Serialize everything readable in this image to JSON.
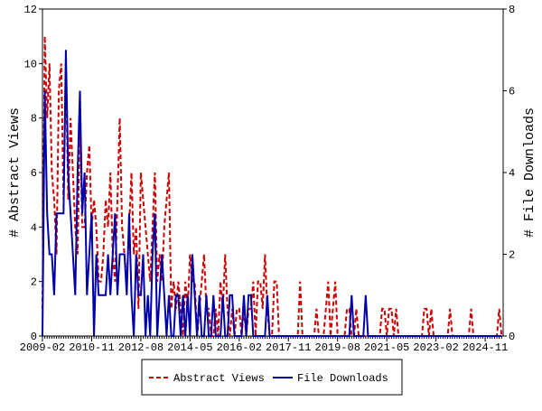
{
  "chart_data": {
    "type": "line",
    "y_label": "# Abstract Views",
    "y2_label": "# File Downloads",
    "x": [
      "2009-02",
      "2009-03",
      "2009-04",
      "2009-05",
      "2009-06",
      "2009-07",
      "2009-08",
      "2009-09",
      "2009-10",
      "2009-11",
      "2009-12",
      "2010-01",
      "2010-02",
      "2010-03",
      "2010-04",
      "2010-05",
      "2010-06",
      "2010-07",
      "2010-08",
      "2010-09",
      "2010-10",
      "2010-11",
      "2010-12",
      "2011-01",
      "2011-02",
      "2011-03",
      "2011-04",
      "2011-05",
      "2011-06",
      "2011-07",
      "2011-08",
      "2011-09",
      "2011-10",
      "2011-11",
      "2011-12",
      "2012-01",
      "2012-02",
      "2012-03",
      "2012-04",
      "2012-05",
      "2012-06",
      "2012-07",
      "2012-08",
      "2012-09",
      "2012-10",
      "2012-11",
      "2012-12",
      "2013-01",
      "2013-02",
      "2013-03",
      "2013-04",
      "2013-05",
      "2013-06",
      "2013-07",
      "2013-08",
      "2013-09",
      "2013-10",
      "2013-11",
      "2013-12",
      "2014-01",
      "2014-02",
      "2014-03",
      "2014-04",
      "2014-05",
      "2014-06",
      "2014-07",
      "2014-08",
      "2014-09",
      "2014-10",
      "2014-11",
      "2014-12",
      "2015-01",
      "2015-02",
      "2015-03",
      "2015-04",
      "2015-05",
      "2015-06",
      "2015-07",
      "2015-08",
      "2015-09",
      "2015-10",
      "2015-11",
      "2015-12",
      "2016-01",
      "2016-02",
      "2016-03",
      "2016-04",
      "2016-05",
      "2016-06",
      "2016-07",
      "2016-08",
      "2016-09",
      "2016-10",
      "2016-11",
      "2016-12",
      "2017-01",
      "2017-02",
      "2017-03",
      "2017-04",
      "2017-05",
      "2017-06",
      "2017-07",
      "2017-08",
      "2017-09",
      "2017-10",
      "2017-11",
      "2017-12",
      "2018-01",
      "2018-02",
      "2018-03",
      "2018-04",
      "2018-05",
      "2018-06",
      "2018-07",
      "2018-08",
      "2018-09",
      "2018-10",
      "2018-11",
      "2018-12",
      "2019-01",
      "2019-02",
      "2019-03",
      "2019-04",
      "2019-05",
      "2019-06",
      "2019-07",
      "2019-08",
      "2019-09",
      "2019-10",
      "2019-11",
      "2019-12",
      "2020-01",
      "2020-02",
      "2020-03",
      "2020-04",
      "2020-05",
      "2020-06",
      "2020-07",
      "2020-08",
      "2020-09",
      "2020-10",
      "2020-11",
      "2020-12",
      "2021-01",
      "2021-02",
      "2021-03",
      "2021-04",
      "2021-05",
      "2021-06",
      "2021-07",
      "2021-08",
      "2021-09",
      "2021-10",
      "2021-11",
      "2021-12",
      "2022-01",
      "2022-02",
      "2022-03",
      "2022-04",
      "2022-05",
      "2022-06",
      "2022-07",
      "2022-08",
      "2022-09",
      "2022-10",
      "2022-11",
      "2022-12",
      "2023-01",
      "2023-02",
      "2023-03",
      "2023-04",
      "2023-05",
      "2023-06",
      "2023-07",
      "2023-08",
      "2023-09",
      "2023-10",
      "2023-11",
      "2023-12",
      "2024-01",
      "2024-02",
      "2024-03",
      "2024-04",
      "2024-05",
      "2024-06",
      "2024-07",
      "2024-08",
      "2024-09",
      "2024-10",
      "2024-11",
      "2024-12",
      "2025-01",
      "2025-02",
      "2025-03",
      "2025-04",
      "2025-05",
      "2025-06"
    ],
    "xticks": [
      "2009-02",
      "2010-11",
      "2012-08",
      "2014-05",
      "2016-02",
      "2017-11",
      "2019-08",
      "2021-05",
      "2023-02",
      "2024-11"
    ],
    "ylim": [
      0,
      12
    ],
    "yticks": [
      0,
      2,
      4,
      6,
      8,
      10,
      12
    ],
    "y2lim": [
      0,
      8
    ],
    "y2ticks": [
      0,
      2,
      4,
      6,
      8
    ],
    "series": [
      {
        "name": "Abstract Views",
        "color": "#cc0000",
        "dash": true,
        "values": [
          1,
          11,
          8,
          10,
          6,
          5,
          3,
          9,
          10,
          5,
          10,
          5,
          8,
          6,
          4,
          3,
          8,
          4,
          4,
          6,
          7,
          4,
          5,
          4,
          2,
          2,
          3,
          5,
          4,
          6,
          3,
          2,
          5,
          8,
          4,
          3,
          2,
          4,
          6,
          3,
          4,
          1,
          6,
          5,
          4,
          3,
          2,
          4,
          6,
          2,
          3,
          2,
          4,
          5,
          6,
          1,
          2,
          1,
          2,
          1,
          0,
          2,
          1,
          3,
          2,
          2,
          0,
          1,
          2,
          3,
          1,
          1,
          0,
          0,
          1,
          0,
          2,
          1,
          3,
          1,
          0,
          1,
          0,
          1,
          1,
          0,
          1,
          0,
          1,
          1,
          2,
          0,
          2,
          2,
          1,
          3,
          1,
          0,
          0,
          2,
          2,
          0,
          0,
          0,
          0,
          0,
          0,
          0,
          0,
          0,
          2,
          0,
          0,
          0,
          0,
          0,
          0,
          1,
          0,
          0,
          0,
          1,
          2,
          0,
          1,
          2,
          0,
          0,
          0,
          0,
          1,
          1,
          0,
          0,
          1,
          0,
          0,
          0,
          0,
          0,
          0,
          0,
          0,
          0,
          0,
          1,
          1,
          0,
          1,
          1,
          0,
          1,
          0,
          0,
          0,
          0,
          0,
          0,
          0,
          0,
          0,
          0,
          0,
          1,
          1,
          0,
          1,
          0,
          0,
          0,
          0,
          0,
          0,
          0,
          1,
          0,
          0,
          0,
          0,
          0,
          0,
          0,
          0,
          1,
          0,
          0,
          0,
          0,
          0,
          0,
          0,
          0,
          0,
          0,
          0,
          1,
          0
        ]
      },
      {
        "name": "File Downloads",
        "color": "#0000aa",
        "axis": "y2",
        "values": [
          0,
          6,
          3,
          2,
          2,
          1,
          3,
          3,
          3,
          3,
          7,
          4,
          3,
          2,
          1,
          4,
          6,
          3,
          4,
          1,
          2,
          3,
          0,
          2,
          1,
          1,
          1,
          1,
          2,
          1,
          2,
          3,
          1,
          2,
          2,
          2,
          1,
          3,
          1,
          0,
          2,
          1,
          1,
          2,
          0,
          1,
          0,
          2,
          3,
          0,
          1,
          2,
          1,
          0,
          1,
          0,
          0,
          1,
          1,
          0,
          1,
          0,
          1,
          0,
          2,
          1,
          0,
          1,
          0,
          0,
          1,
          0,
          0,
          1,
          0,
          0,
          0,
          1,
          0,
          0,
          1,
          1,
          0,
          0,
          0,
          0,
          1,
          0,
          1,
          1,
          0,
          0,
          0,
          0,
          0,
          0,
          1,
          0,
          0,
          0,
          0,
          0,
          0,
          0,
          0,
          0,
          0,
          0,
          0,
          0,
          0,
          0,
          0,
          0,
          0,
          0,
          0,
          0,
          0,
          0,
          0,
          0,
          0,
          0,
          0,
          0,
          0,
          0,
          0,
          0,
          0,
          0,
          1,
          0,
          0,
          0,
          0,
          0,
          1,
          0,
          0,
          0,
          0,
          0,
          0,
          0,
          0,
          0,
          0,
          0,
          0,
          0,
          0,
          0,
          0,
          0,
          0,
          0,
          0,
          0,
          0,
          0,
          0,
          0,
          0,
          0,
          0,
          0,
          0,
          0,
          0,
          0,
          0,
          0,
          0,
          0,
          0,
          0,
          0,
          0,
          0,
          0,
          0,
          0,
          0,
          0,
          0,
          0,
          0,
          0,
          0,
          0,
          0,
          0,
          0,
          0,
          0
        ]
      }
    ]
  }
}
